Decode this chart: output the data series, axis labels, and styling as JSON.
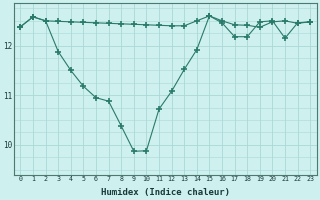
{
  "line1_x": [
    0,
    1,
    2,
    3,
    4,
    5,
    6,
    7,
    8,
    9,
    10,
    11,
    12,
    13,
    14,
    15,
    16,
    17,
    18,
    19,
    20,
    21,
    22,
    23
  ],
  "line1_y": [
    12.38,
    12.58,
    12.5,
    12.49,
    12.48,
    12.47,
    12.46,
    12.45,
    12.44,
    12.43,
    12.42,
    12.41,
    12.4,
    12.4,
    12.5,
    12.6,
    12.5,
    12.42,
    12.41,
    12.37,
    12.48,
    12.5,
    12.45,
    12.48
  ],
  "line2_x": [
    0,
    1,
    2,
    3,
    4,
    5,
    6,
    7,
    8,
    9,
    10,
    11,
    12,
    13,
    14,
    15,
    16,
    17,
    18,
    19,
    20,
    21,
    22,
    23
  ],
  "line2_y": [
    12.38,
    12.58,
    12.5,
    11.88,
    11.5,
    11.18,
    10.95,
    10.88,
    10.38,
    9.87,
    9.88,
    10.72,
    11.08,
    11.52,
    11.92,
    12.6,
    12.46,
    12.18,
    12.18,
    12.48,
    12.5,
    12.15,
    12.46,
    12.48
  ],
  "bg_color": "#cef0ee",
  "grid_color": "#aad8d5",
  "line_color": "#2a7a6a",
  "xlabel": "Humidex (Indice chaleur)",
  "yticks": [
    10,
    11,
    12
  ],
  "xticks": [
    0,
    1,
    2,
    3,
    4,
    5,
    6,
    7,
    8,
    9,
    10,
    11,
    12,
    13,
    14,
    15,
    16,
    17,
    18,
    19,
    20,
    21,
    22,
    23
  ],
  "xlim": [
    -0.5,
    23.5
  ],
  "ylim": [
    9.4,
    12.85
  ],
  "marker": "+",
  "markersize": 4.0,
  "markeredgewidth": 1.2,
  "linewidth": 0.8
}
